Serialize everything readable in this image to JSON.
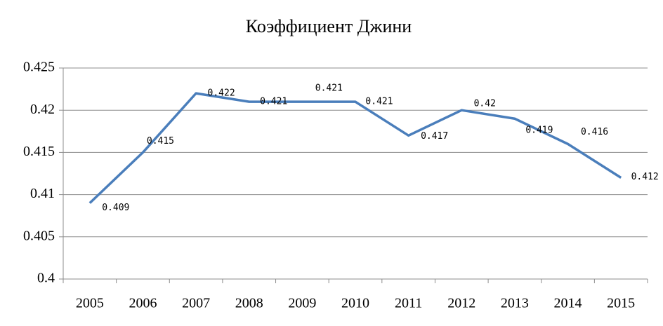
{
  "chart_data": {
    "type": "line",
    "title": "Коэффициент Джини",
    "categories": [
      "2005",
      "2006",
      "2007",
      "2008",
      "2009",
      "2010",
      "2011",
      "2012",
      "2013",
      "2014",
      "2015"
    ],
    "series": [
      {
        "name": "Коэффициент Джини",
        "color": "#4a7ebb",
        "values": [
          0.409,
          0.415,
          0.422,
          0.421,
          0.421,
          0.421,
          0.417,
          0.42,
          0.419,
          0.416,
          0.412
        ]
      }
    ],
    "ylim": [
      0.4,
      0.425
    ],
    "yticks": [
      0.4,
      0.405,
      0.41,
      0.415,
      0.42,
      0.425
    ],
    "grid": true
  }
}
